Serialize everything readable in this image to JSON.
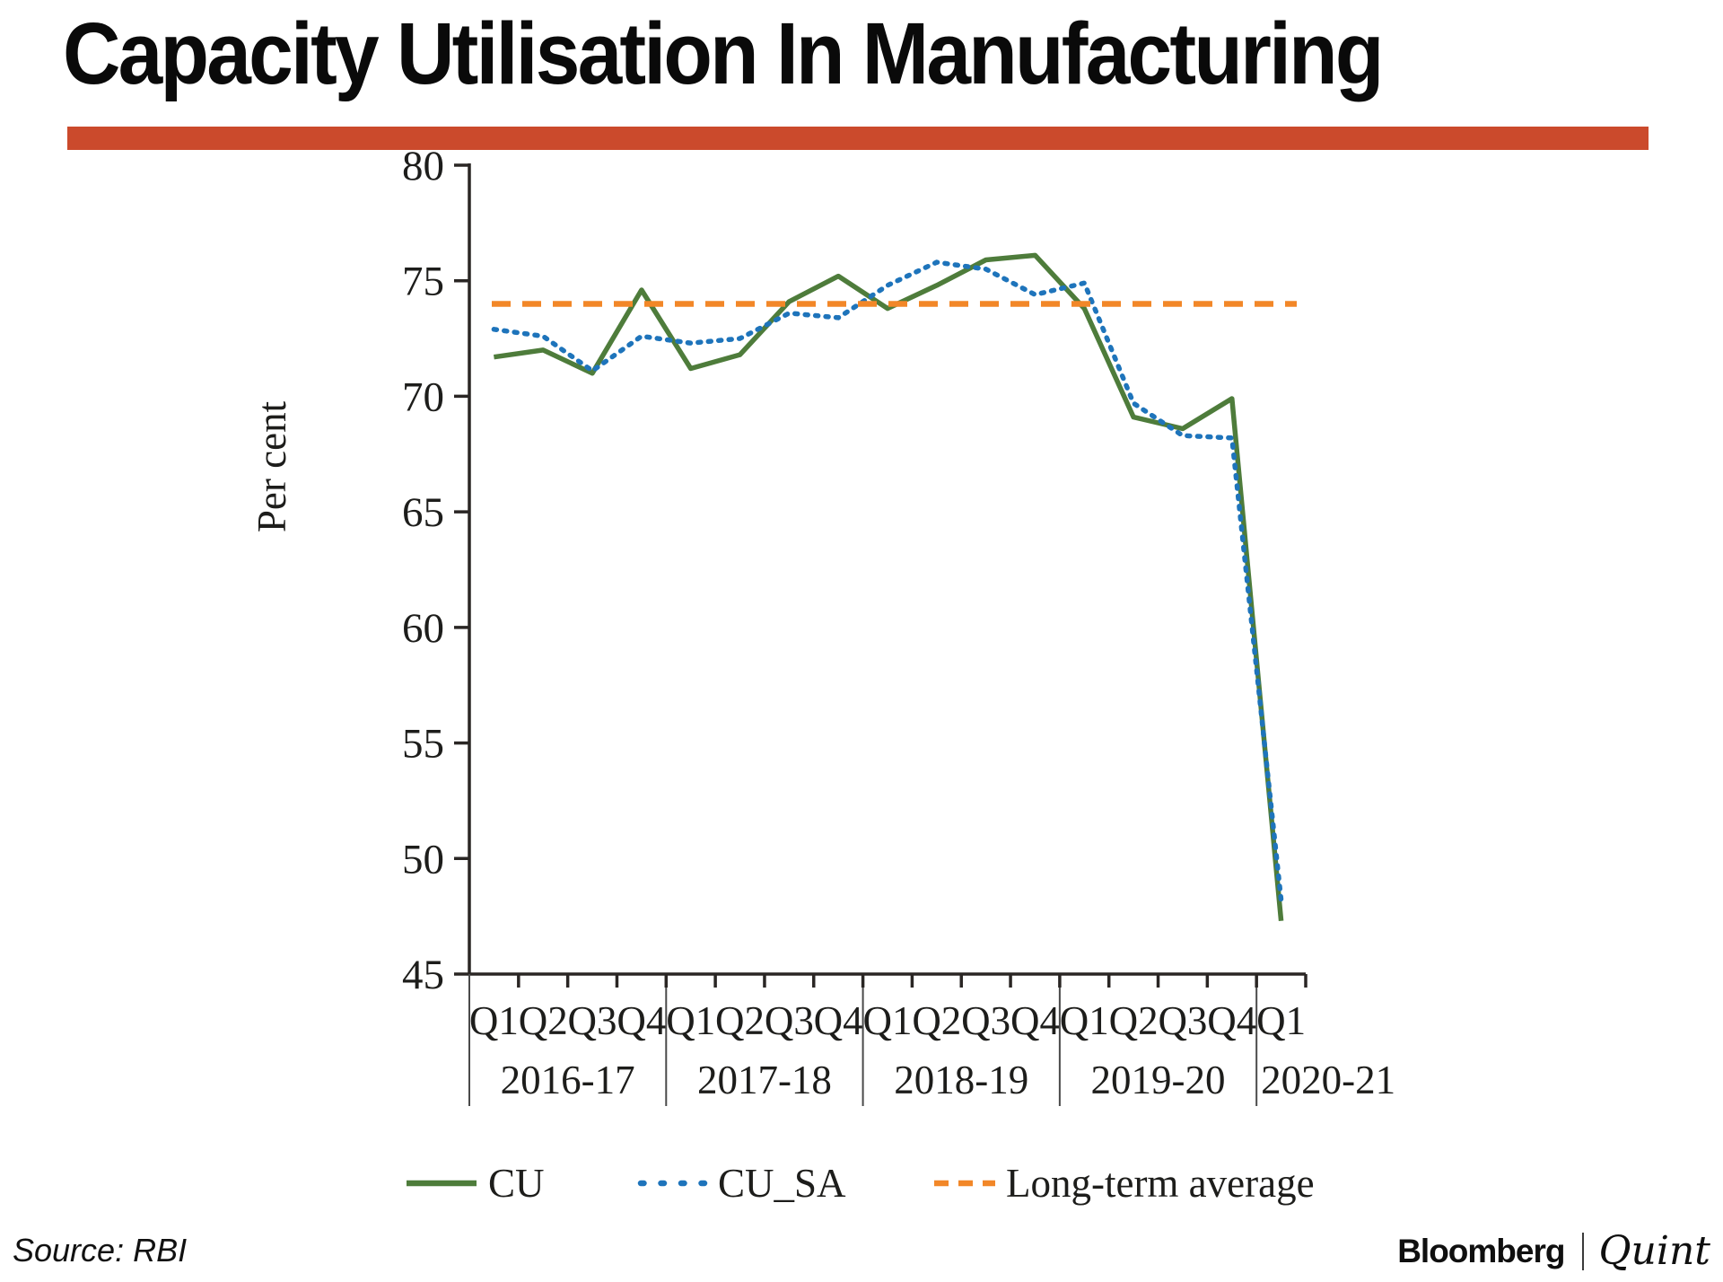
{
  "title": "Capacity Utilisation In Manufacturing",
  "accent_color": "#CB4A2C",
  "axis_color": "#2a2624",
  "footer": {
    "source": "Source: RBI",
    "brand_primary": "Bloomberg",
    "brand_secondary": "Quint"
  },
  "chart_data": {
    "type": "line",
    "ylabel": "Per cent",
    "ylim": [
      45,
      80
    ],
    "ytick_step": 5,
    "grid": false,
    "legend_position": "bottom",
    "x_groups": [
      {
        "year": "2016-17",
        "quarters": [
          "Q1",
          "Q2",
          "Q3",
          "Q4"
        ]
      },
      {
        "year": "2017-18",
        "quarters": [
          "Q1",
          "Q2",
          "Q3",
          "Q4"
        ]
      },
      {
        "year": "2018-19",
        "quarters": [
          "Q1",
          "Q2",
          "Q3",
          "Q4"
        ]
      },
      {
        "year": "2019-20",
        "quarters": [
          "Q1",
          "Q2",
          "Q3",
          "Q4"
        ]
      },
      {
        "year": "2020-21",
        "quarters": [
          "Q1"
        ]
      }
    ],
    "series": [
      {
        "name": "CU",
        "style": "solid",
        "color": "#4E7C3B",
        "values": [
          71.7,
          72.0,
          71.0,
          74.6,
          71.2,
          71.8,
          74.1,
          75.2,
          73.8,
          74.8,
          75.9,
          76.1,
          73.8,
          69.1,
          68.6,
          69.9,
          47.3
        ]
      },
      {
        "name": "CU_SA",
        "style": "dotted",
        "color": "#1E74BB",
        "values": [
          72.9,
          72.6,
          71.1,
          72.6,
          72.3,
          72.5,
          73.6,
          73.4,
          74.8,
          75.8,
          75.5,
          74.4,
          74.9,
          69.7,
          68.3,
          68.2,
          48.2
        ]
      },
      {
        "name": "Long-term average",
        "style": "dashed",
        "color": "#F28728",
        "constant": 74.0
      }
    ]
  }
}
